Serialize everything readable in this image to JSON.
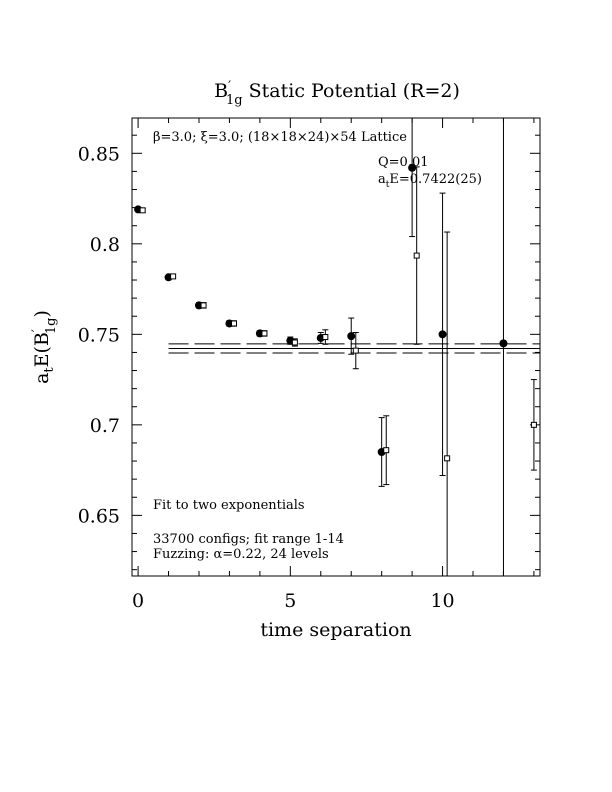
{
  "chart_data": {
    "type": "scatter",
    "title": {
      "base": "B",
      "prime": "′",
      "sub": "1g",
      "rest": " Static Potential (R=2)"
    },
    "xlabel": "time separation",
    "ylabel": {
      "pre": "a",
      "sub1": "t",
      "mid": "E(B",
      "prime": "′",
      "sub2": "1g",
      "post": ")"
    },
    "xlim": [
      -0.2,
      13.2
    ],
    "ylim": [
      0.6165,
      0.8695
    ],
    "x_ticks": [
      0,
      5,
      10
    ],
    "y_ticks": [
      0.65,
      0.7,
      0.75,
      0.8,
      0.85
    ],
    "y_tick_labels": [
      "0.65",
      "0.7",
      "0.75",
      "0.8",
      "0.85"
    ],
    "annotations": {
      "lattice": "β=3.0; ξ=3.0; (18×18×24)×54 Lattice",
      "q": "Q=0.01",
      "fit_result": {
        "pre": "a",
        "sub": "t",
        "post": "E=0.7422(25)"
      },
      "fit_type": "Fit to two exponentials",
      "configs": "33700 configs; fit range 1-14",
      "fuzzing": "Fuzzing: α=0.22, 24 levels"
    },
    "fit": {
      "center": 0.7422,
      "upper": 0.7447,
      "lower": 0.7397,
      "x_start": 1,
      "x_end": 13.2
    },
    "series": [
      {
        "marker": "filled-circle",
        "points": [
          {
            "x": 0,
            "y": 0.819,
            "err": 0.001
          },
          {
            "x": 1,
            "y": 0.7815,
            "err": 0.001
          },
          {
            "x": 2,
            "y": 0.766,
            "err": 0.0015
          },
          {
            "x": 3,
            "y": 0.756,
            "err": 0.0015
          },
          {
            "x": 4,
            "y": 0.7505,
            "err": 0.0015
          },
          {
            "x": 5,
            "y": 0.7465,
            "err": 0.002
          },
          {
            "x": 6,
            "y": 0.748,
            "err": 0.003
          },
          {
            "x": 7,
            "y": 0.749,
            "err": 0.01
          },
          {
            "x": 8,
            "y": 0.685,
            "err": 0.019
          },
          {
            "x": 9,
            "y": 0.842,
            "err": 0.038
          },
          {
            "x": 10,
            "y": 0.75,
            "err": 0.078
          },
          {
            "x": 12,
            "y": 0.745,
            "err": 0.18
          }
        ]
      },
      {
        "marker": "open-square",
        "points": [
          {
            "x": 0.15,
            "y": 0.8185,
            "err": 0.001
          },
          {
            "x": 1.15,
            "y": 0.782,
            "err": 0.001
          },
          {
            "x": 2.15,
            "y": 0.766,
            "err": 0.0015
          },
          {
            "x": 3.15,
            "y": 0.756,
            "err": 0.0015
          },
          {
            "x": 4.15,
            "y": 0.7505,
            "err": 0.0015
          },
          {
            "x": 5.15,
            "y": 0.7455,
            "err": 0.002
          },
          {
            "x": 6.15,
            "y": 0.7485,
            "err": 0.004
          },
          {
            "x": 7.15,
            "y": 0.741,
            "err": 0.01
          },
          {
            "x": 8.15,
            "y": 0.686,
            "err": 0.019
          },
          {
            "x": 9.15,
            "y": 0.7935,
            "err": 0.049
          },
          {
            "x": 10.15,
            "y": 0.6815,
            "err": 0.125
          },
          {
            "x": 13.0,
            "y": 0.7,
            "err": 0.025
          }
        ]
      }
    ]
  }
}
